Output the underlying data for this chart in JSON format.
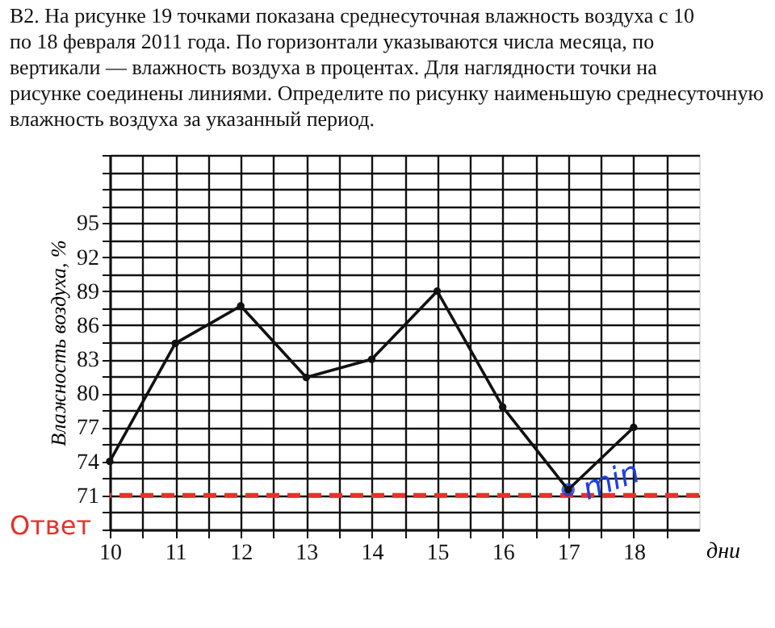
{
  "chart_data": {
    "type": "line",
    "title": "B2. На рисунке 19 точками показана среднесуточная влажность воздуха с 10 по 18 февраля 2011 года. По горизонтали указываются числа месяца, по вертикали — влажность воздуха в процентах. Для наглядности точки на рисунке соединены линиями. Определите по рисунку наименьшую среднесуточную влажность воздуха за указанный период.",
    "xlabel": "дни",
    "ylabel": "Влажность воздуха, %",
    "x": [
      10,
      11,
      12,
      13,
      14,
      15,
      16,
      17,
      18
    ],
    "series": [
      {
        "color": "#111111",
        "values": [
          74,
          84.4,
          87.7,
          81.4,
          83,
          89,
          78.8,
          71.5,
          77
        ]
      }
    ],
    "marker": "circle",
    "line_style": "solid",
    "grid": true,
    "xlim": [
      10,
      19
    ],
    "xticks": [
      10,
      {
        "value": 10.5,
        "label": null
      },
      11,
      {
        "value": 11.5,
        "label": null
      },
      12,
      {
        "value": 12.5,
        "label": null
      },
      13,
      {
        "value": 13.5,
        "label": null
      },
      14,
      {
        "value": 14.5,
        "label": null
      },
      15,
      {
        "value": 15.5,
        "label": null
      },
      16,
      {
        "value": 16.5,
        "label": null
      },
      17,
      {
        "value": 17.5,
        "label": null
      },
      18,
      {
        "value": 18.5,
        "label": null
      }
    ],
    "ylim": [
      68,
      101
    ],
    "yticks": [
      {
        "value": 68,
        "label": null
      },
      {
        "value": 69.5,
        "label": null
      },
      71,
      {
        "value": 72.5,
        "label": null
      },
      74,
      {
        "value": 75.5,
        "label": null
      },
      77,
      {
        "value": 78.5,
        "label": null
      },
      80,
      {
        "value": 81.5,
        "label": null
      },
      83,
      {
        "value": 84.5,
        "label": null
      },
      86,
      {
        "value": 87.5,
        "label": null
      },
      89,
      {
        "value": 90.5,
        "label": null
      },
      92,
      {
        "value": 93.5,
        "label": null
      },
      95,
      {
        "value": 96.5,
        "label": null
      },
      {
        "value": 98,
        "label": null
      },
      {
        "value": 99.5,
        "label": null
      },
      {
        "value": 101,
        "label": null
      }
    ],
    "ref_lines": [
      {
        "axis": "y",
        "value": 71,
        "color": "#e8302a",
        "line_style": "dashed"
      }
    ],
    "annotations": [
      "Ответ",
      {
        "text": "min",
        "x": 17,
        "y": 71.5
      }
    ]
  }
}
